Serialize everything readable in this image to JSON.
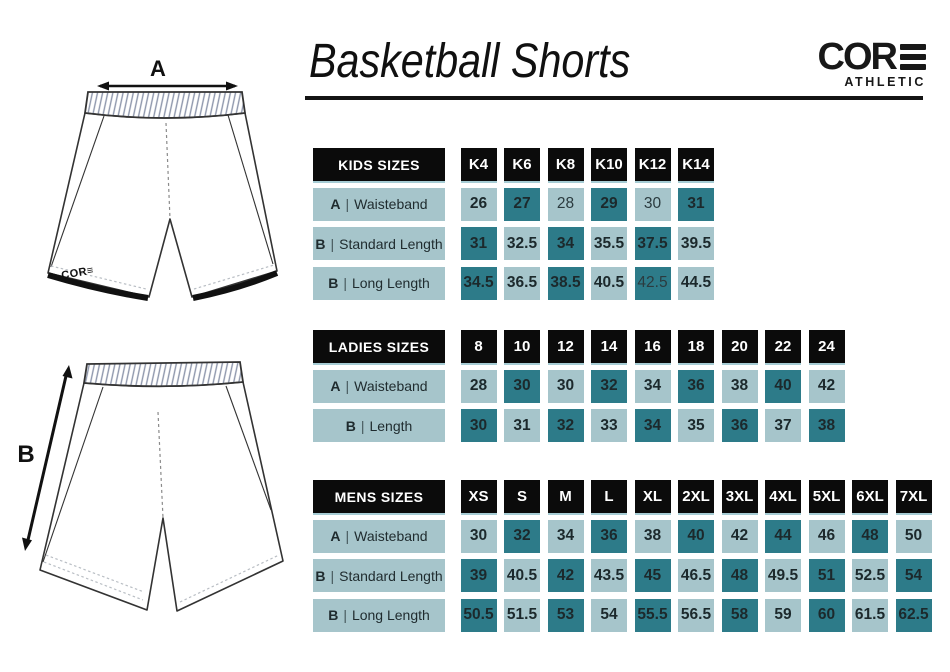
{
  "title": "Basketball Shorts",
  "logo": {
    "brand": "CORE",
    "sub": "ATHLETIC"
  },
  "diagram": {
    "label_a": "A",
    "label_b": "B",
    "mini_logo": "COR≡"
  },
  "divider": "|",
  "colors": {
    "teal_dark": "#2d7b89",
    "teal_light": "#a6c5cb",
    "header_black": "#0b0b0b"
  },
  "tables": [
    {
      "name": "KIDS SIZES",
      "sizes": [
        "K4",
        "K6",
        "K8",
        "K10",
        "K12",
        "K14"
      ],
      "rows": [
        {
          "letter": "A",
          "label": "Waisteband",
          "first_shade": "light",
          "values": [
            "26",
            "27",
            "28",
            "29",
            "30",
            "31"
          ],
          "regular": [
            2,
            4
          ]
        },
        {
          "letter": "B",
          "label": "Standard Length",
          "first_shade": "dark",
          "values": [
            "31",
            "32.5",
            "34",
            "35.5",
            "37.5",
            "39.5"
          ],
          "regular": []
        },
        {
          "letter": "B",
          "label": "Long Length",
          "first_shade": "dark",
          "values": [
            "34.5",
            "36.5",
            "38.5",
            "40.5",
            "42.5",
            "44.5"
          ],
          "regular": [
            4
          ]
        }
      ]
    },
    {
      "name": "LADIES SIZES",
      "sizes": [
        "8",
        "10",
        "12",
        "14",
        "16",
        "18",
        "20",
        "22",
        "24"
      ],
      "rows": [
        {
          "letter": "A",
          "label": "Waisteband",
          "first_shade": "light",
          "values": [
            "28",
            "30",
            "30",
            "32",
            "34",
            "36",
            "38",
            "40",
            "42"
          ],
          "regular": []
        },
        {
          "letter": "B",
          "label": "Length",
          "first_shade": "dark",
          "values": [
            "30",
            "31",
            "32",
            "33",
            "34",
            "35",
            "36",
            "37",
            "38"
          ],
          "regular": []
        }
      ]
    },
    {
      "name": "MENS SIZES",
      "sizes": [
        "XS",
        "S",
        "M",
        "L",
        "XL",
        "2XL",
        "3XL",
        "4XL",
        "5XL",
        "6XL",
        "7XL"
      ],
      "rows": [
        {
          "letter": "A",
          "label": "Waisteband",
          "first_shade": "light",
          "values": [
            "30",
            "32",
            "34",
            "36",
            "38",
            "40",
            "42",
            "44",
            "46",
            "48",
            "50"
          ],
          "regular": []
        },
        {
          "letter": "B",
          "label": "Standard Length",
          "first_shade": "dark",
          "values": [
            "39",
            "40.5",
            "42",
            "43.5",
            "45",
            "46.5",
            "48",
            "49.5",
            "51",
            "52.5",
            "54"
          ],
          "regular": []
        },
        {
          "letter": "B",
          "label": "Long Length",
          "first_shade": "dark",
          "values": [
            "50.5",
            "51.5",
            "53",
            "54",
            "55.5",
            "56.5",
            "58",
            "59",
            "60",
            "61.5",
            "62.5"
          ],
          "regular": []
        }
      ]
    }
  ]
}
